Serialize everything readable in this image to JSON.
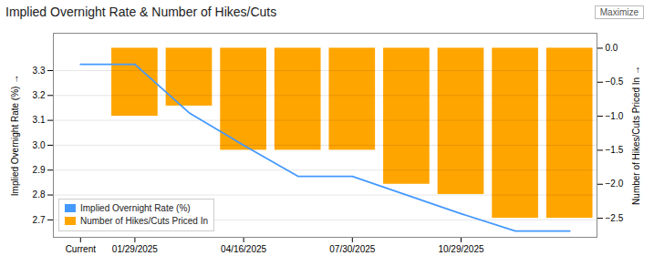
{
  "chart_data": {
    "type": "bar",
    "title": "Implied Overnight Rate & Number of Hikes/Cuts",
    "annotations": [
      "Maximize"
    ],
    "categories": [
      "Current",
      "01/29/2025",
      null,
      "04/16/2025",
      null,
      "07/30/2025",
      null,
      "10/29/2025",
      null,
      null
    ],
    "series": [
      {
        "name": "Implied Overnight Rate (%)",
        "type": "line",
        "color": "#4499FF",
        "values": [
          3.325,
          3.325,
          3.13,
          3.0,
          2.875,
          2.875,
          2.8,
          2.725,
          2.655,
          2.655
        ]
      },
      {
        "name": "Number of Hikes/Cuts Priced In",
        "type": "bar",
        "color": "#FFA500",
        "axis": "y2",
        "values": [
          0.0,
          -1.0,
          -0.85,
          -1.5,
          -1.5,
          -1.5,
          -2.0,
          -2.15,
          -2.5,
          -2.5
        ]
      }
    ],
    "ylabel": "Implied Overnight Rate (%)",
    "y2label": "Number of Hikes/Cuts Priced In",
    "ylim": [
      2.63,
      3.45
    ],
    "yticks": [
      2.7,
      2.8,
      2.9,
      {
        "value": 3.0,
        "label": "3.0"
      },
      3.1,
      3.2,
      3.3
    ],
    "y2lim": [
      -2.78,
      0.22
    ],
    "y2ticks": [
      {
        "value": 0.0,
        "label": "0.0"
      },
      -0.5,
      {
        "value": -1.0,
        "label": "−1.0"
      },
      -1.5,
      {
        "value": -2.0,
        "label": "−2.0"
      },
      -2.5
    ],
    "grid": true,
    "legend": "lower left"
  }
}
